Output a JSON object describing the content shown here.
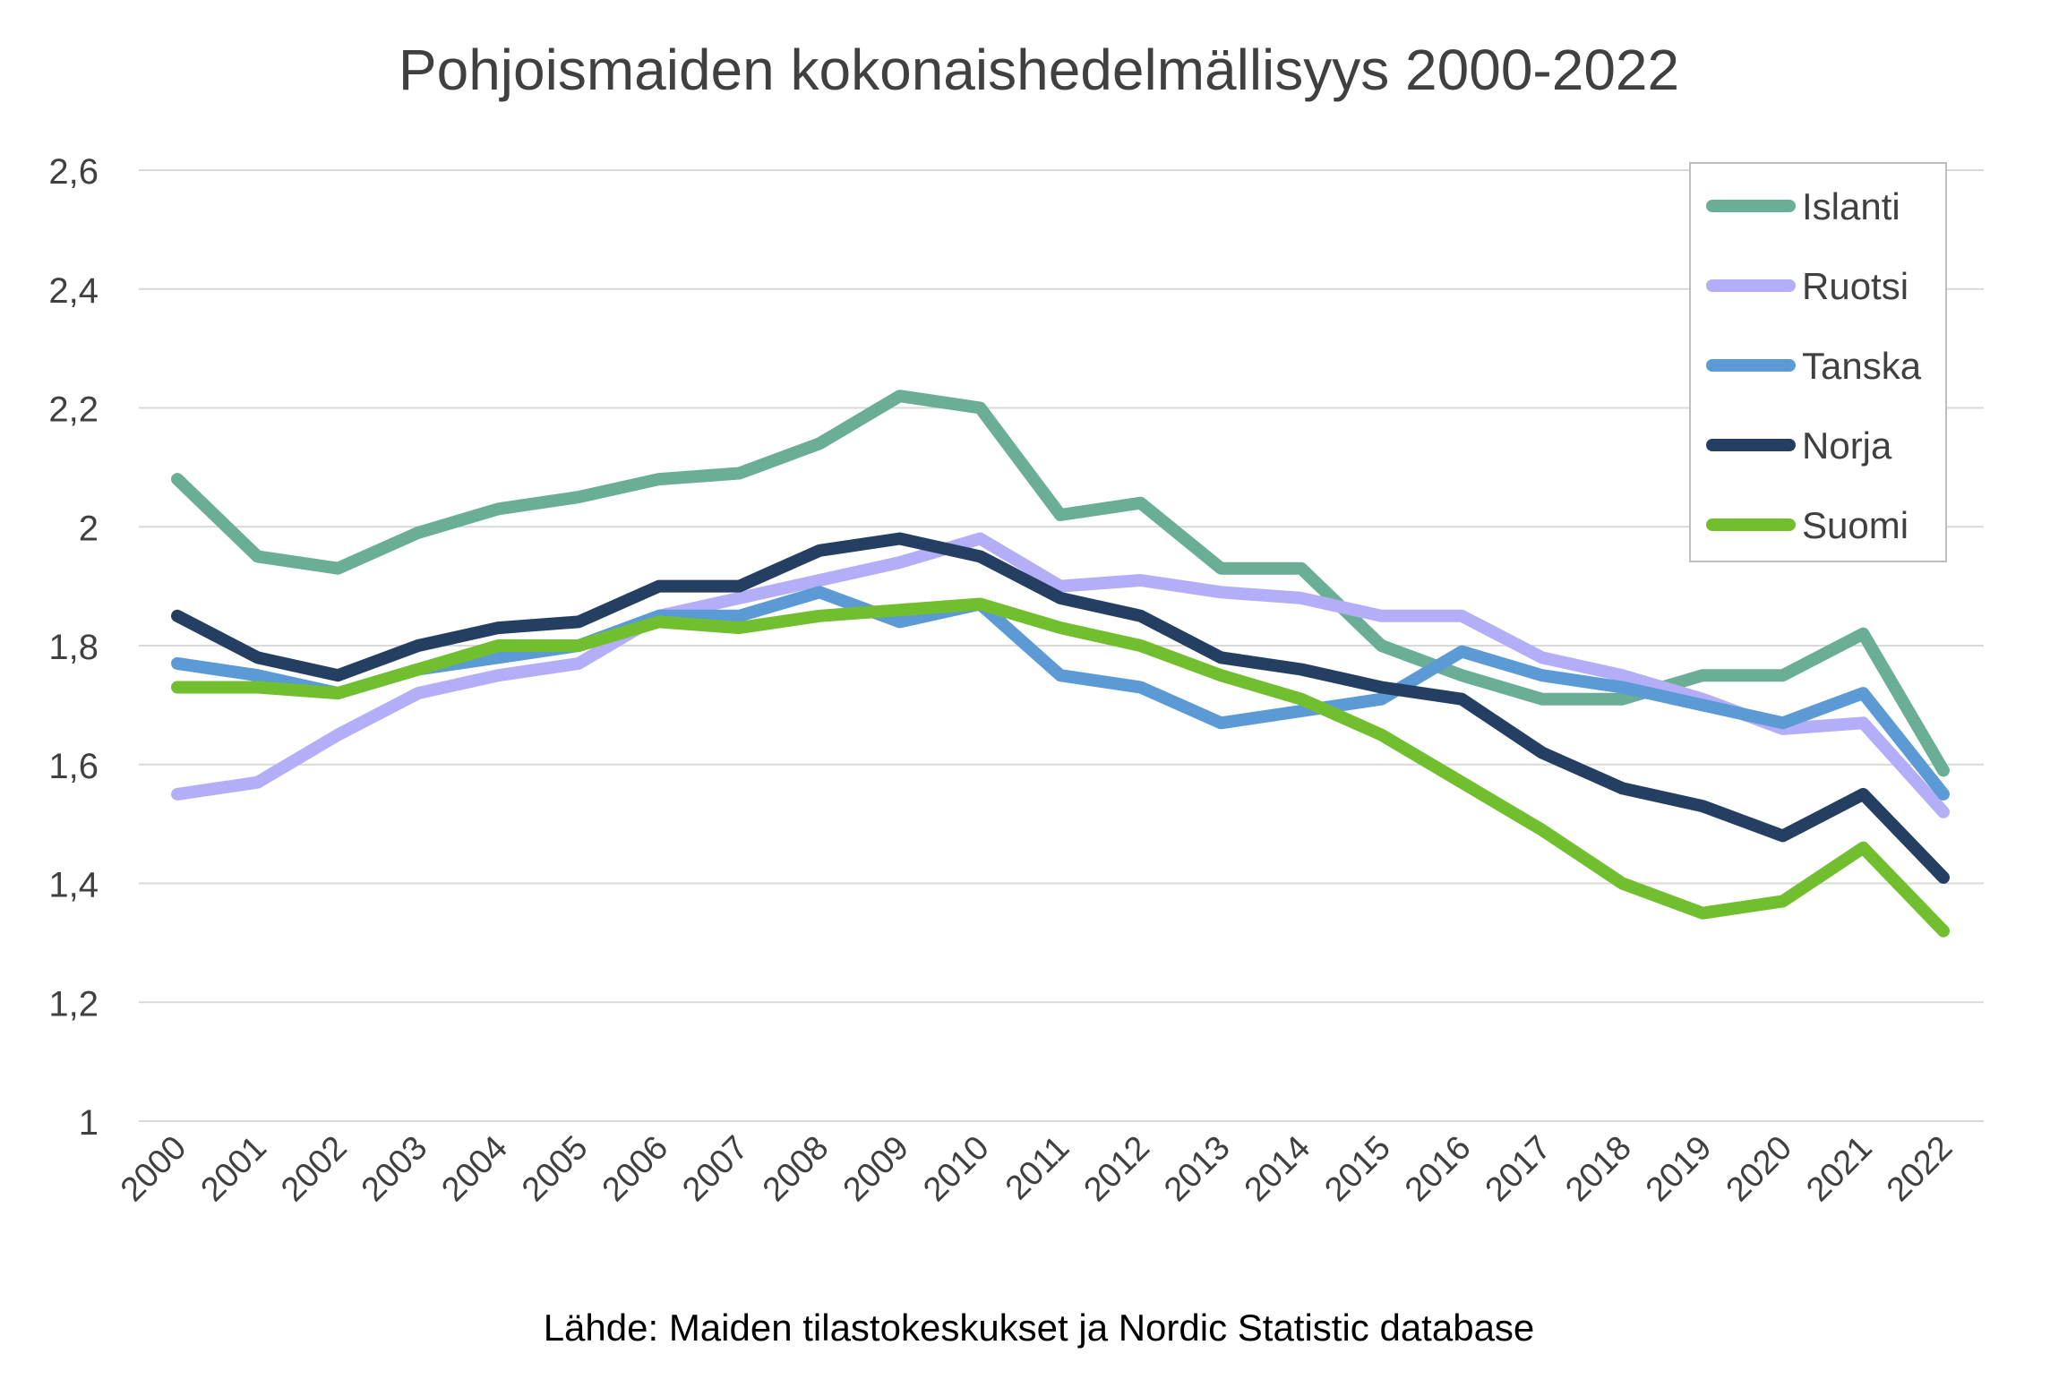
{
  "chart_data": {
    "type": "line",
    "title": "Pohjoismaiden kokonaishedelmällisyys 2000-2022",
    "source": "Lähde: Maiden tilastokeskukset ja Nordic Statistic database",
    "xlabel": "",
    "ylabel": "",
    "ylim": [
      1,
      2.6
    ],
    "yticks": [
      "1",
      "1,2",
      "1,4",
      "1,6",
      "1,8",
      "2",
      "2,2",
      "2,4",
      "2,6"
    ],
    "ytick_values": [
      1,
      1.2,
      1.4,
      1.6,
      1.8,
      2,
      2.2,
      2.4,
      2.6
    ],
    "grid": true,
    "legend_position": "top-right",
    "categories": [
      "2000",
      "2001",
      "2002",
      "2003",
      "2004",
      "2005",
      "2006",
      "2007",
      "2008",
      "2009",
      "2010",
      "2011",
      "2012",
      "2013",
      "2014",
      "2015",
      "2016",
      "2017",
      "2018",
      "2019",
      "2020",
      "2021",
      "2022"
    ],
    "series": [
      {
        "name": "Islanti",
        "color": "#6AAF95",
        "values": [
          2.08,
          1.95,
          1.93,
          1.99,
          2.03,
          2.05,
          2.08,
          2.09,
          2.14,
          2.22,
          2.2,
          2.02,
          2.04,
          1.93,
          1.93,
          1.8,
          1.75,
          1.71,
          1.71,
          1.75,
          1.75,
          1.82,
          1.59
        ]
      },
      {
        "name": "Ruotsi",
        "color": "#B4AEF8",
        "values": [
          1.55,
          1.57,
          1.65,
          1.72,
          1.75,
          1.77,
          1.85,
          1.88,
          1.91,
          1.94,
          1.98,
          1.9,
          1.91,
          1.89,
          1.88,
          1.85,
          1.85,
          1.78,
          1.75,
          1.71,
          1.66,
          1.67,
          1.52
        ]
      },
      {
        "name": "Tanska",
        "color": "#5B9AD5",
        "values": [
          1.77,
          1.75,
          1.72,
          1.76,
          1.78,
          1.8,
          1.85,
          1.85,
          1.89,
          1.84,
          1.87,
          1.75,
          1.73,
          1.67,
          1.69,
          1.71,
          1.79,
          1.75,
          1.73,
          1.7,
          1.67,
          1.72,
          1.55
        ]
      },
      {
        "name": "Norja",
        "color": "#243F61",
        "values": [
          1.85,
          1.78,
          1.75,
          1.8,
          1.83,
          1.84,
          1.9,
          1.9,
          1.96,
          1.98,
          1.95,
          1.88,
          1.85,
          1.78,
          1.76,
          1.73,
          1.71,
          1.62,
          1.56,
          1.53,
          1.48,
          1.55,
          1.41
        ]
      },
      {
        "name": "Suomi",
        "color": "#71BF2F",
        "values": [
          1.73,
          1.73,
          1.72,
          1.76,
          1.8,
          1.8,
          1.84,
          1.83,
          1.85,
          1.86,
          1.87,
          1.83,
          1.8,
          1.75,
          1.71,
          1.65,
          1.57,
          1.49,
          1.4,
          1.35,
          1.37,
          1.46,
          1.32
        ]
      }
    ]
  }
}
